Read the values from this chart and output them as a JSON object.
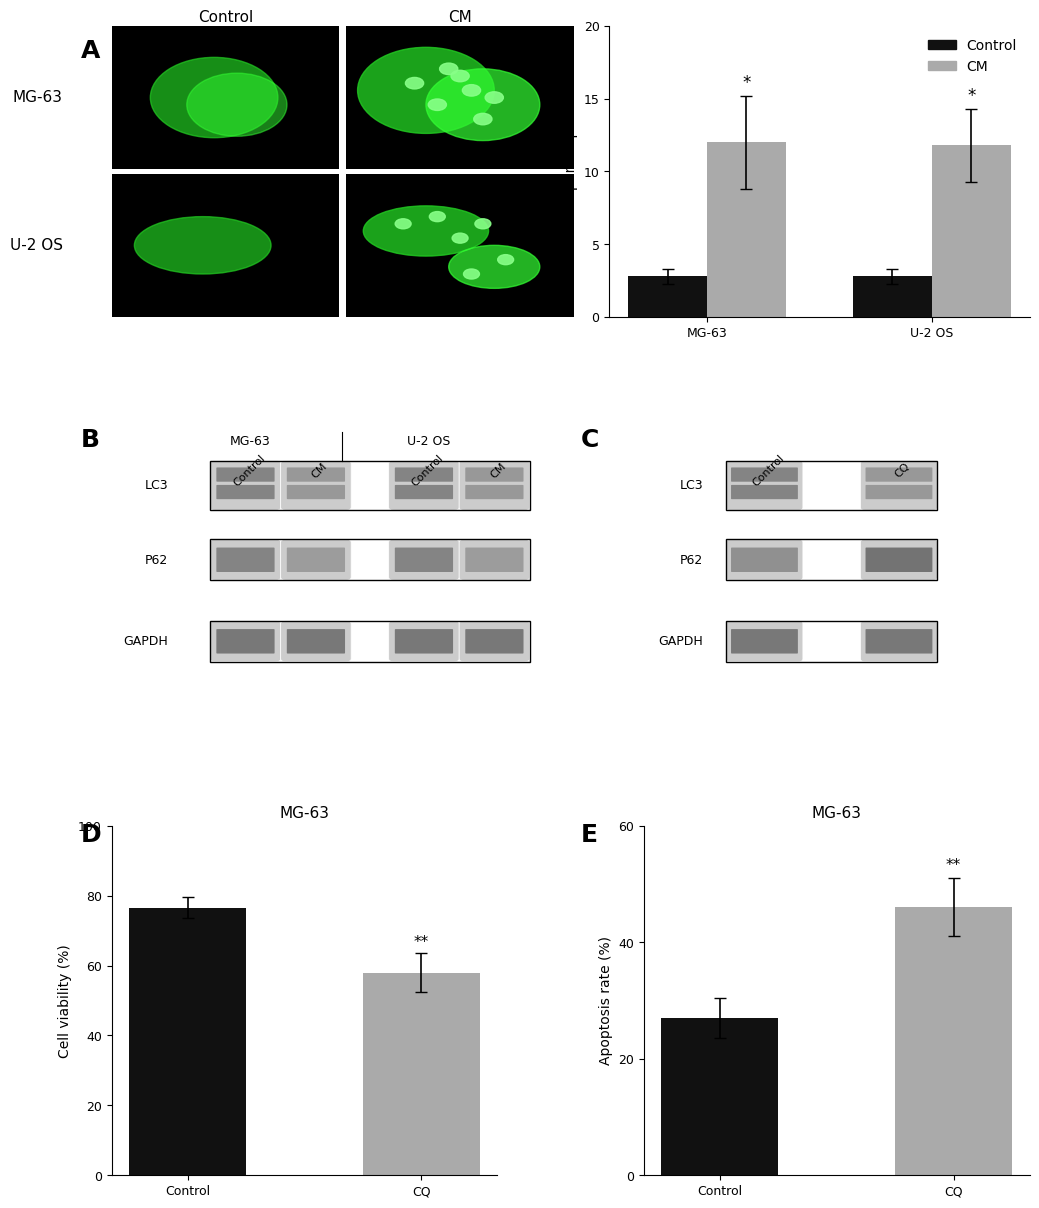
{
  "panel_A_bar": {
    "groups": [
      "MG-63",
      "U-2 OS"
    ],
    "control_vals": [
      2.8,
      2.8
    ],
    "cm_vals": [
      12.0,
      11.8
    ],
    "control_err": [
      0.5,
      0.5
    ],
    "cm_err": [
      3.2,
      2.5
    ],
    "ylabel": "GFP LC-3 puncta per cell",
    "ylim": [
      0,
      20
    ],
    "yticks": [
      0,
      5,
      10,
      15,
      20
    ],
    "legend_control": "Control",
    "legend_cm": "CM",
    "color_control": "#111111",
    "color_cm": "#aaaaaa",
    "sig_cm": [
      "*",
      "*"
    ]
  },
  "panel_D": {
    "categories": [
      "Control",
      "CQ"
    ],
    "values": [
      76.5,
      58.0
    ],
    "errors": [
      3.0,
      5.5
    ],
    "colors": [
      "#111111",
      "#aaaaaa"
    ],
    "ylabel": "Cell viability (%)",
    "ylim": [
      0,
      100
    ],
    "yticks": [
      0,
      20,
      40,
      60,
      80,
      100
    ],
    "title": "MG-63",
    "sig": [
      "",
      "**"
    ]
  },
  "panel_E": {
    "categories": [
      "Control",
      "CQ"
    ],
    "values": [
      27.0,
      46.0
    ],
    "errors": [
      3.5,
      5.0
    ],
    "colors": [
      "#111111",
      "#aaaaaa"
    ],
    "ylabel": "Apoptosis rate (%)",
    "ylim": [
      0,
      60
    ],
    "yticks": [
      0,
      20,
      40,
      60
    ],
    "title": "MG-63",
    "sig": [
      "",
      "**"
    ]
  },
  "panel_labels": [
    "A",
    "B",
    "C",
    "D",
    "E"
  ],
  "panel_label_fontsize": 18,
  "axis_fontsize": 10,
  "tick_fontsize": 9,
  "title_fontsize": 11,
  "legend_fontsize": 10,
  "bar_width": 0.35,
  "capsize": 4,
  "background_color": "#ffffff"
}
